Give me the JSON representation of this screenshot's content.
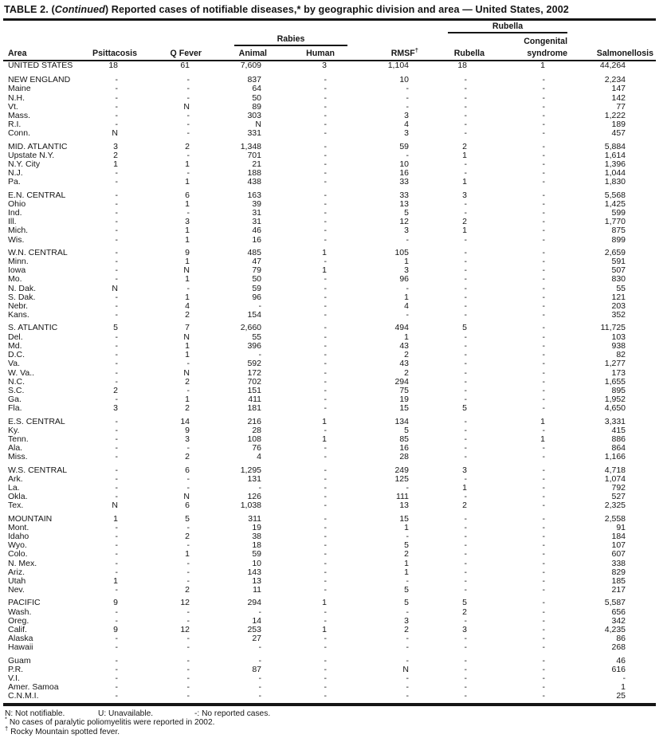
{
  "title": {
    "prefix": "TABLE 2. (",
    "continued": "Continued",
    "suffix": ") Reported cases of notifiable diseases,* by geographic division and area — United States, 2002"
  },
  "table": {
    "spanners": {
      "rabies": "Rabies",
      "rubella": "Rubella"
    },
    "columns": {
      "area": "Area",
      "psittacosis": "Psittacosis",
      "q_fever": "Q Fever",
      "rabies_animal": "Animal",
      "rabies_human": "Human",
      "rmsf_label": "RMSF",
      "rmsf_marker": "†",
      "rubella": "Rubella",
      "congenital_line1": "Congenital",
      "congenital_line2": "syndrome",
      "salmonellosis": "Salmonellosis"
    },
    "rows": [
      {
        "area": "UNITED STATES",
        "level": "total",
        "values": [
          "18",
          "61",
          "7,609",
          "3",
          "1,104",
          "18",
          "1",
          "44,264"
        ]
      },
      {
        "area": "NEW ENGLAND",
        "level": "region",
        "gap_before": true,
        "values": [
          "-",
          "-",
          "837",
          "-",
          "10",
          "-",
          "-",
          "2,234"
        ]
      },
      {
        "area": "Maine",
        "level": "state",
        "values": [
          "-",
          "-",
          "64",
          "-",
          "-",
          "-",
          "-",
          "147"
        ]
      },
      {
        "area": "N.H.",
        "level": "state",
        "values": [
          "-",
          "-",
          "50",
          "-",
          "-",
          "-",
          "-",
          "142"
        ]
      },
      {
        "area": "Vt.",
        "level": "state",
        "values": [
          "-",
          "N",
          "89",
          "-",
          "-",
          "-",
          "-",
          "77"
        ]
      },
      {
        "area": "Mass.",
        "level": "state",
        "values": [
          "-",
          "-",
          "303",
          "-",
          "3",
          "-",
          "-",
          "1,222"
        ]
      },
      {
        "area": "R.I.",
        "level": "state",
        "values": [
          "-",
          "-",
          "N",
          "-",
          "4",
          "-",
          "-",
          "189"
        ]
      },
      {
        "area": "Conn.",
        "level": "state",
        "values": [
          "N",
          "-",
          "331",
          "-",
          "3",
          "-",
          "-",
          "457"
        ]
      },
      {
        "area": "MID. ATLANTIC",
        "level": "region",
        "gap_before": true,
        "values": [
          "3",
          "2",
          "1,348",
          "-",
          "59",
          "2",
          "-",
          "5,884"
        ]
      },
      {
        "area": "Upstate N.Y.",
        "level": "state",
        "values": [
          "2",
          "-",
          "701",
          "-",
          "-",
          "1",
          "-",
          "1,614"
        ]
      },
      {
        "area": "N.Y. City",
        "level": "state",
        "values": [
          "1",
          "1",
          "21",
          "-",
          "10",
          "-",
          "-",
          "1,396"
        ]
      },
      {
        "area": "N.J.",
        "level": "state",
        "values": [
          "-",
          "-",
          "188",
          "-",
          "16",
          "-",
          "-",
          "1,044"
        ]
      },
      {
        "area": "Pa.",
        "level": "state",
        "values": [
          "-",
          "1",
          "438",
          "-",
          "33",
          "1",
          "-",
          "1,830"
        ]
      },
      {
        "area": "E.N. CENTRAL",
        "level": "region",
        "gap_before": true,
        "values": [
          "-",
          "6",
          "163",
          "-",
          "33",
          "3",
          "-",
          "5,568"
        ]
      },
      {
        "area": "Ohio",
        "level": "state",
        "values": [
          "-",
          "1",
          "39",
          "-",
          "13",
          "-",
          "-",
          "1,425"
        ]
      },
      {
        "area": "Ind.",
        "level": "state",
        "values": [
          "-",
          "-",
          "31",
          "-",
          "5",
          "-",
          "-",
          "599"
        ]
      },
      {
        "area": "Ill.",
        "level": "state",
        "values": [
          "-",
          "3",
          "31",
          "-",
          "12",
          "2",
          "-",
          "1,770"
        ]
      },
      {
        "area": "Mich.",
        "level": "state",
        "values": [
          "-",
          "1",
          "46",
          "-",
          "3",
          "1",
          "-",
          "875"
        ]
      },
      {
        "area": "Wis.",
        "level": "state",
        "values": [
          "-",
          "1",
          "16",
          "-",
          "-",
          "-",
          "-",
          "899"
        ]
      },
      {
        "area": "W.N. CENTRAL",
        "level": "region",
        "gap_before": true,
        "values": [
          "-",
          "9",
          "485",
          "1",
          "105",
          "-",
          "-",
          "2,659"
        ]
      },
      {
        "area": "Minn.",
        "level": "state",
        "values": [
          "-",
          "1",
          "47",
          "-",
          "1",
          "-",
          "-",
          "591"
        ]
      },
      {
        "area": "Iowa",
        "level": "state",
        "values": [
          "-",
          "N",
          "79",
          "1",
          "3",
          "-",
          "-",
          "507"
        ]
      },
      {
        "area": "Mo.",
        "level": "state",
        "values": [
          "-",
          "1",
          "50",
          "-",
          "96",
          "-",
          "-",
          "830"
        ]
      },
      {
        "area": "N. Dak.",
        "level": "state",
        "values": [
          "N",
          "-",
          "59",
          "-",
          "-",
          "-",
          "-",
          "55"
        ]
      },
      {
        "area": "S. Dak.",
        "level": "state",
        "values": [
          "-",
          "1",
          "96",
          "-",
          "1",
          "-",
          "-",
          "121"
        ]
      },
      {
        "area": "Nebr.",
        "level": "state",
        "values": [
          "-",
          "4",
          "-",
          "-",
          "4",
          "-",
          "-",
          "203"
        ]
      },
      {
        "area": "Kans.",
        "level": "state",
        "values": [
          "-",
          "2",
          "154",
          "-",
          "-",
          "-",
          "-",
          "352"
        ]
      },
      {
        "area": "S. ATLANTIC",
        "level": "region",
        "gap_before": true,
        "values": [
          "5",
          "7",
          "2,660",
          "-",
          "494",
          "5",
          "-",
          "11,725"
        ]
      },
      {
        "area": "Del.",
        "level": "state",
        "values": [
          "-",
          "N",
          "55",
          "-",
          "1",
          "-",
          "-",
          "103"
        ]
      },
      {
        "area": "Md.",
        "level": "state",
        "values": [
          "-",
          "1",
          "396",
          "-",
          "43",
          "-",
          "-",
          "938"
        ]
      },
      {
        "area": "D.C.",
        "level": "state",
        "values": [
          "-",
          "1",
          "-",
          "-",
          "2",
          "-",
          "-",
          "82"
        ]
      },
      {
        "area": "Va.",
        "level": "state",
        "values": [
          "-",
          "-",
          "592",
          "-",
          "43",
          "-",
          "-",
          "1,277"
        ]
      },
      {
        "area": "W. Va..",
        "level": "state",
        "values": [
          "-",
          "N",
          "172",
          "-",
          "2",
          "-",
          "-",
          "173"
        ]
      },
      {
        "area": "N.C.",
        "level": "state",
        "values": [
          "-",
          "2",
          "702",
          "-",
          "294",
          "-",
          "-",
          "1,655"
        ]
      },
      {
        "area": "S.C.",
        "level": "state",
        "values": [
          "2",
          "-",
          "151",
          "-",
          "75",
          "-",
          "-",
          "895"
        ]
      },
      {
        "area": "Ga.",
        "level": "state",
        "values": [
          "-",
          "1",
          "411",
          "-",
          "19",
          "-",
          "-",
          "1,952"
        ]
      },
      {
        "area": "Fla.",
        "level": "state",
        "values": [
          "3",
          "2",
          "181",
          "-",
          "15",
          "5",
          "-",
          "4,650"
        ]
      },
      {
        "area": "E.S. CENTRAL",
        "level": "region",
        "gap_before": true,
        "values": [
          "-",
          "14",
          "216",
          "1",
          "134",
          "-",
          "1",
          "3,331"
        ]
      },
      {
        "area": "Ky.",
        "level": "state",
        "values": [
          "-",
          "9",
          "28",
          "-",
          "5",
          "-",
          "-",
          "415"
        ]
      },
      {
        "area": "Tenn.",
        "level": "state",
        "values": [
          "-",
          "3",
          "108",
          "1",
          "85",
          "-",
          "1",
          "886"
        ]
      },
      {
        "area": "Ala.",
        "level": "state",
        "values": [
          "-",
          "-",
          "76",
          "-",
          "16",
          "-",
          "-",
          "864"
        ]
      },
      {
        "area": "Miss.",
        "level": "state",
        "values": [
          "-",
          "2",
          "4",
          "-",
          "28",
          "-",
          "-",
          "1,166"
        ]
      },
      {
        "area": "W.S. CENTRAL",
        "level": "region",
        "gap_before": true,
        "values": [
          "-",
          "6",
          "1,295",
          "-",
          "249",
          "3",
          "-",
          "4,718"
        ]
      },
      {
        "area": "Ark.",
        "level": "state",
        "values": [
          "-",
          "-",
          "131",
          "-",
          "125",
          "-",
          "-",
          "1,074"
        ]
      },
      {
        "area": "La.",
        "level": "state",
        "values": [
          "-",
          "-",
          "-",
          "-",
          "-",
          "1",
          "-",
          "792"
        ]
      },
      {
        "area": "Okla.",
        "level": "state",
        "values": [
          "-",
          "N",
          "126",
          "-",
          "111",
          "-",
          "-",
          "527"
        ]
      },
      {
        "area": "Tex.",
        "level": "state",
        "values": [
          "N",
          "6",
          "1,038",
          "-",
          "13",
          "2",
          "-",
          "2,325"
        ]
      },
      {
        "area": "MOUNTAIN",
        "level": "region",
        "gap_before": true,
        "values": [
          "1",
          "5",
          "311",
          "-",
          "15",
          "-",
          "-",
          "2,558"
        ]
      },
      {
        "area": "Mont.",
        "level": "state",
        "values": [
          "-",
          "-",
          "19",
          "-",
          "1",
          "-",
          "-",
          "91"
        ]
      },
      {
        "area": "Idaho",
        "level": "state",
        "values": [
          "-",
          "2",
          "38",
          "-",
          "-",
          "-",
          "-",
          "184"
        ]
      },
      {
        "area": "Wyo.",
        "level": "state",
        "values": [
          "-",
          "-",
          "18",
          "-",
          "5",
          "-",
          "-",
          "107"
        ]
      },
      {
        "area": "Colo.",
        "level": "state",
        "values": [
          "-",
          "1",
          "59",
          "-",
          "2",
          "-",
          "-",
          "607"
        ]
      },
      {
        "area": "N. Mex.",
        "level": "state",
        "values": [
          "-",
          "-",
          "10",
          "-",
          "1",
          "-",
          "-",
          "338"
        ]
      },
      {
        "area": "Ariz.",
        "level": "state",
        "values": [
          "-",
          "-",
          "143",
          "-",
          "1",
          "-",
          "-",
          "829"
        ]
      },
      {
        "area": "Utah",
        "level": "state",
        "values": [
          "1",
          "-",
          "13",
          "-",
          "-",
          "-",
          "-",
          "185"
        ]
      },
      {
        "area": "Nev.",
        "level": "state",
        "values": [
          "-",
          "2",
          "11",
          "-",
          "5",
          "-",
          "-",
          "217"
        ]
      },
      {
        "area": "PACIFIC",
        "level": "region",
        "gap_before": true,
        "values": [
          "9",
          "12",
          "294",
          "1",
          "5",
          "5",
          "-",
          "5,587"
        ]
      },
      {
        "area": "Wash.",
        "level": "state",
        "values": [
          "-",
          "-",
          "-",
          "-",
          "-",
          "2",
          "-",
          "656"
        ]
      },
      {
        "area": "Oreg.",
        "level": "state",
        "values": [
          "-",
          "-",
          "14",
          "-",
          "3",
          "-",
          "-",
          "342"
        ]
      },
      {
        "area": "Calif.",
        "level": "state",
        "values": [
          "9",
          "12",
          "253",
          "1",
          "2",
          "3",
          "-",
          "4,235"
        ]
      },
      {
        "area": "Alaska",
        "level": "state",
        "values": [
          "-",
          "-",
          "27",
          "-",
          "-",
          "-",
          "-",
          "86"
        ]
      },
      {
        "area": "Hawaii",
        "level": "state",
        "values": [
          "-",
          "-",
          "-",
          "-",
          "-",
          "-",
          "-",
          "268"
        ]
      },
      {
        "area": "Guam",
        "level": "territory",
        "gap_before": true,
        "values": [
          "-",
          "-",
          "-",
          "-",
          "-",
          "-",
          "-",
          "46"
        ]
      },
      {
        "area": "P.R.",
        "level": "territory",
        "values": [
          "-",
          "-",
          "87",
          "-",
          "N",
          "-",
          "-",
          "616"
        ]
      },
      {
        "area": "V.I.",
        "level": "territory",
        "values": [
          "-",
          "-",
          "-",
          "-",
          "-",
          "-",
          "-",
          "-"
        ]
      },
      {
        "area": "Amer. Samoa",
        "level": "territory",
        "values": [
          "-",
          "-",
          "-",
          "-",
          "-",
          "-",
          "-",
          "1"
        ]
      },
      {
        "area": "C.N.M.I.",
        "level": "territory",
        "values": [
          "-",
          "-",
          "-",
          "-",
          "-",
          "-",
          "-",
          "25"
        ]
      }
    ]
  },
  "footnotes": {
    "legend": [
      {
        "key": "N:",
        "text": "Not notifiable."
      },
      {
        "key": "U:",
        "text": "Unavailable."
      },
      {
        "key": "-:",
        "text": "No reported cases."
      }
    ],
    "notes": [
      {
        "marker": "*",
        "text": "No cases of paralytic poliomyelitis were reported in 2002."
      },
      {
        "marker": "†",
        "text": "Rocky Mountain spotted fever."
      }
    ]
  }
}
